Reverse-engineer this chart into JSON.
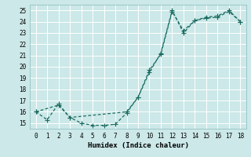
{
  "xlabel": "Humidex (Indice chaleur)",
  "background_color": "#cce8e8",
  "grid_color": "#ffffff",
  "line_color": "#1a6b60",
  "xlim": [
    -0.5,
    18.5
  ],
  "ylim": [
    14.5,
    25.5
  ],
  "xticks": [
    0,
    1,
    2,
    3,
    4,
    5,
    6,
    7,
    8,
    9,
    10,
    11,
    12,
    13,
    14,
    15,
    16,
    17,
    18
  ],
  "yticks": [
    15,
    16,
    17,
    18,
    19,
    20,
    21,
    22,
    23,
    24,
    25
  ],
  "line1_x": [
    0,
    1,
    2,
    3,
    4,
    5,
    6,
    7,
    8,
    9,
    10,
    11,
    12,
    13,
    14,
    15,
    16,
    17,
    18
  ],
  "line1_y": [
    16.0,
    15.3,
    16.7,
    15.5,
    15.0,
    14.8,
    14.8,
    14.9,
    15.9,
    17.3,
    19.5,
    21.2,
    25.0,
    23.0,
    24.1,
    24.4,
    24.5,
    25.0,
    24.0
  ],
  "line2_x": [
    0,
    2,
    3,
    8,
    9,
    10,
    11,
    12,
    13,
    14,
    15,
    16,
    17,
    18
  ],
  "line2_y": [
    16.0,
    16.6,
    15.5,
    16.0,
    17.3,
    19.7,
    21.1,
    24.9,
    23.2,
    24.1,
    24.3,
    24.4,
    24.9,
    24.0
  ]
}
